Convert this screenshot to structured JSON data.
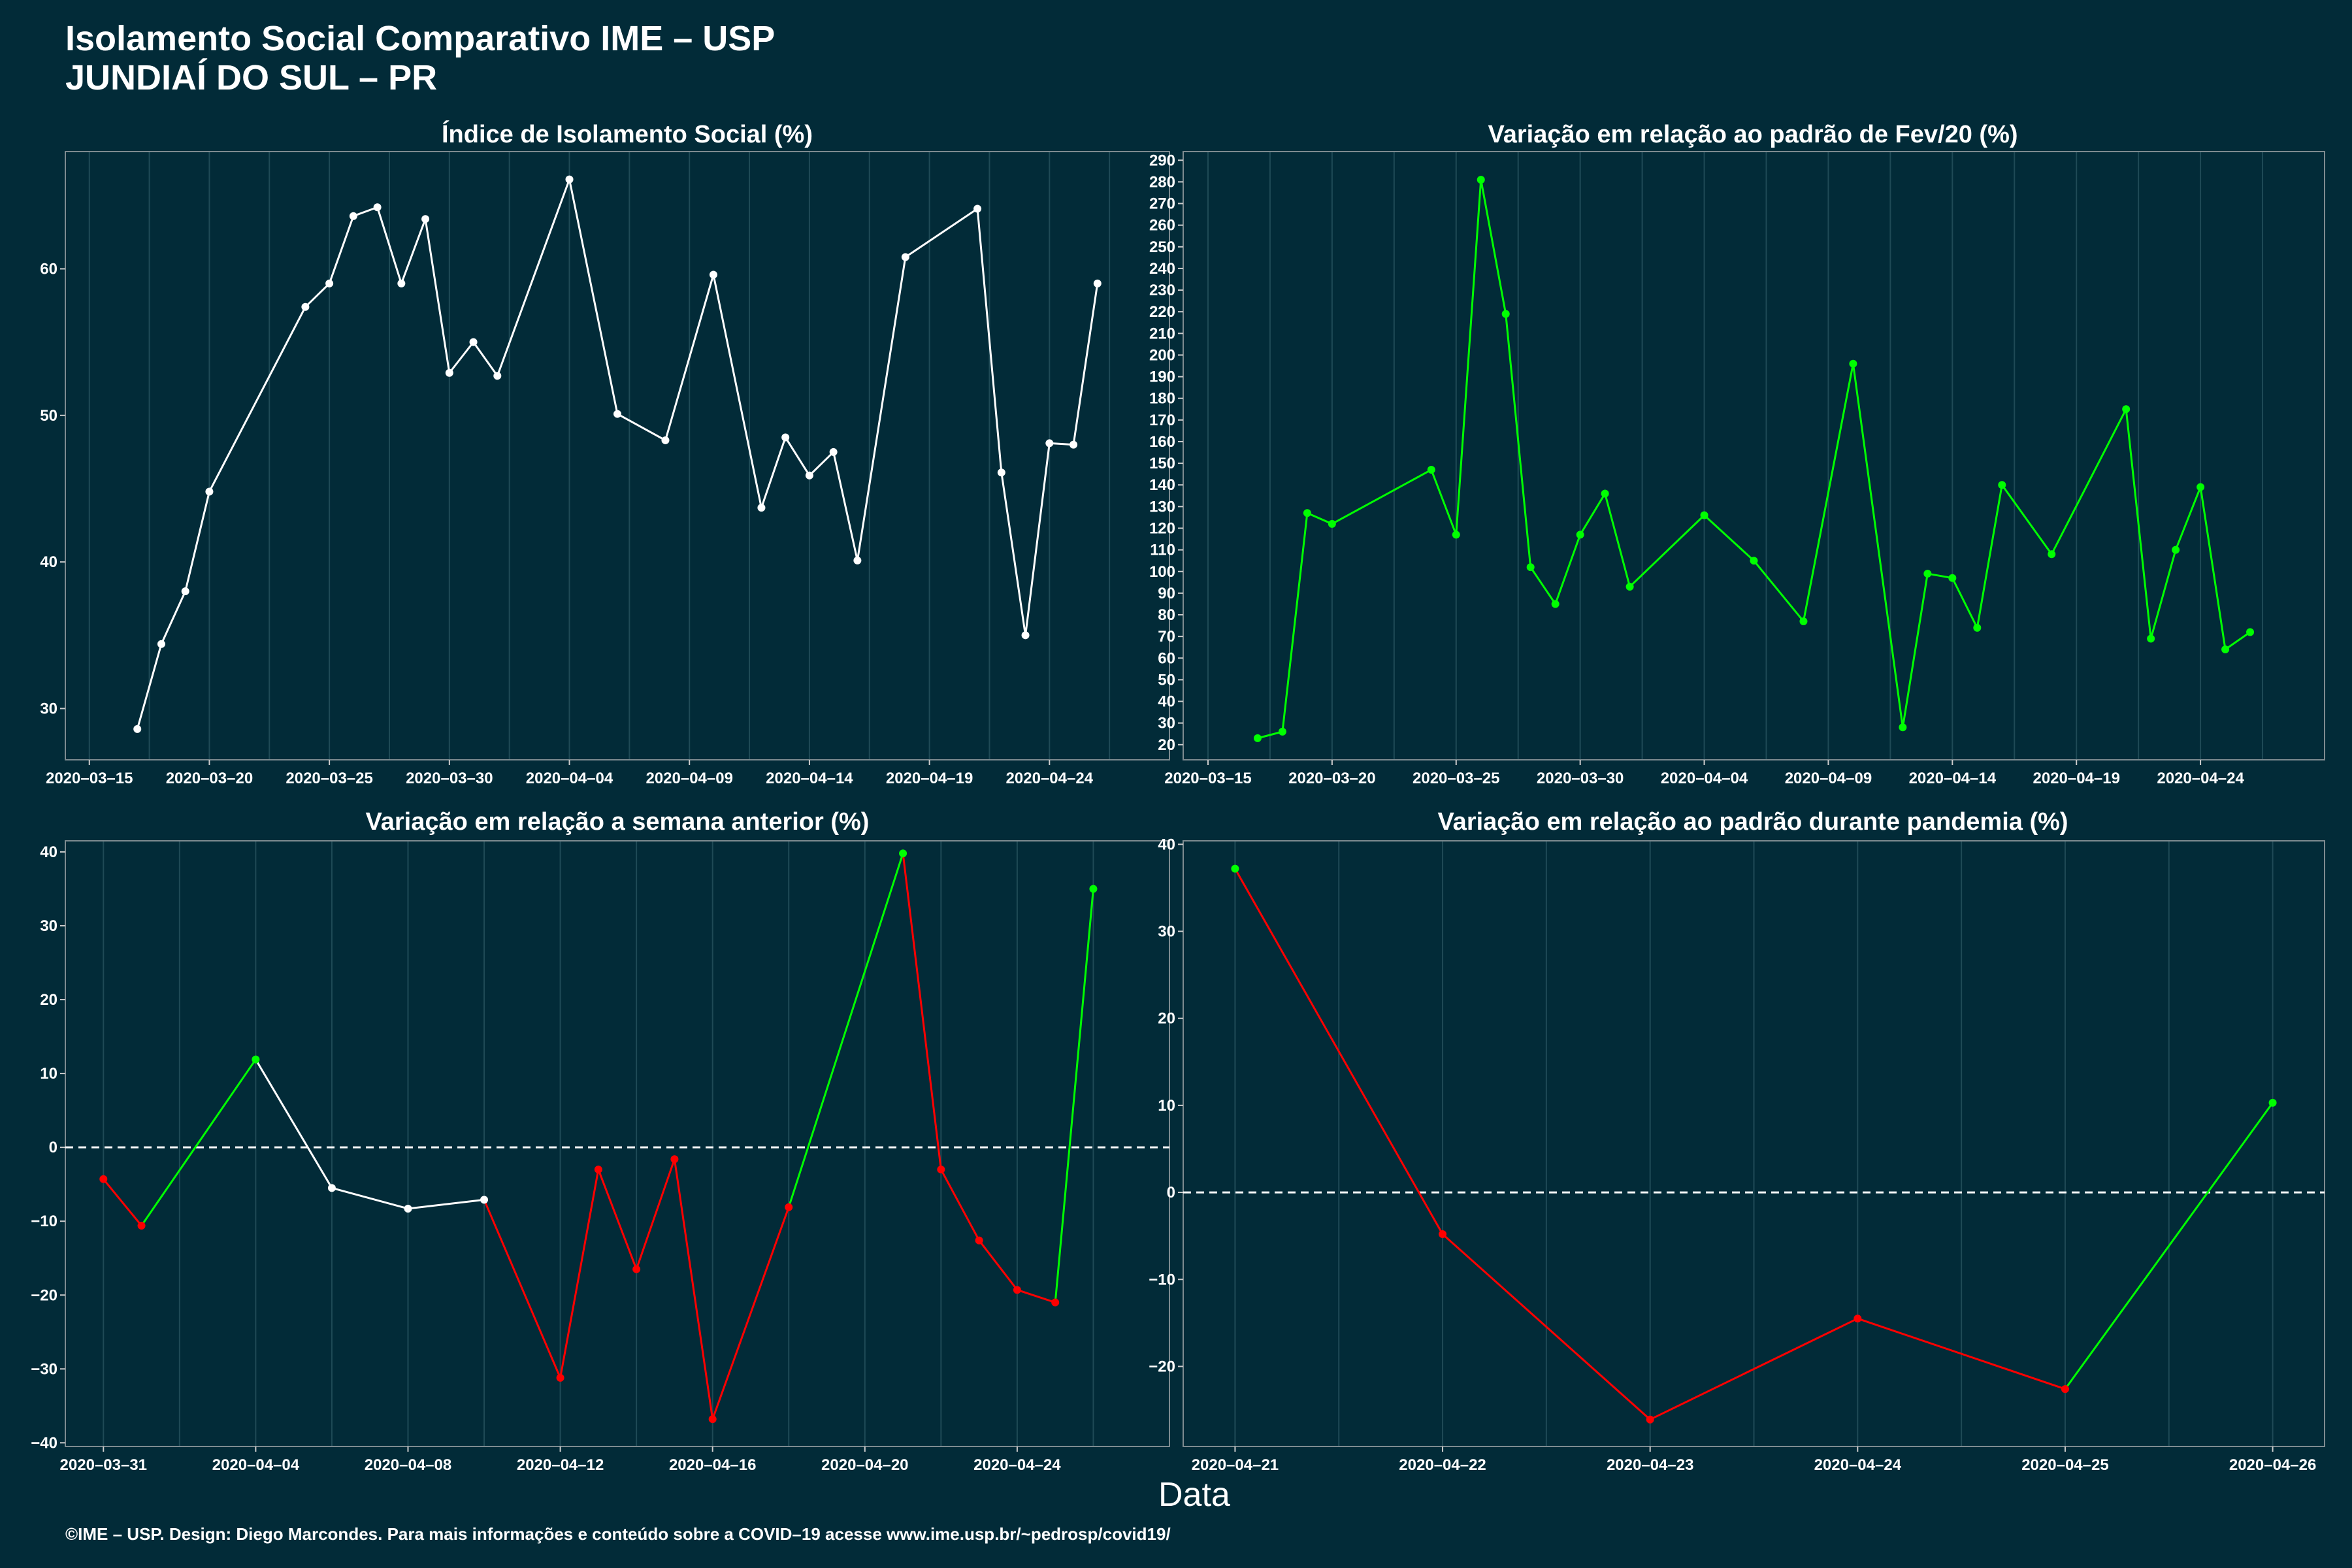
{
  "title": "Isolamento Social Comparativo IME – USP",
  "subtitle": "JUNDIAÍ DO SUL – PR",
  "xlabel": "Data",
  "footer": "©IME – USP. Design: Diego Marcondes. Para mais informações e conteúdo sobre a COVID–19 acesse www.ime.usp.br/~pedrosp/covid19/",
  "colors": {
    "background": "#022b38",
    "white": "#ffffff",
    "green": "#00ff00",
    "red": "#ff0000"
  },
  "chart_data": [
    {
      "type": "line",
      "title": "Índice de Isolamento Social (%)",
      "ylim": [
        26.5,
        68
      ],
      "yticks": [
        30,
        40,
        50,
        60
      ],
      "xlim": [
        "2020-03-14",
        "2020-04-29"
      ],
      "xticks": [
        "2020-03-15",
        "2020-03-20",
        "2020-03-25",
        "2020-03-30",
        "2020-04-04",
        "2020-04-09",
        "2020-04-14",
        "2020-04-19",
        "2020-04-24"
      ],
      "grid": true,
      "points": [
        {
          "x": "2020-03-17",
          "y": 28.6,
          "c": "white"
        },
        {
          "x": "2020-03-18",
          "y": 34.4,
          "c": "white"
        },
        {
          "x": "2020-03-19",
          "y": 38.0,
          "c": "white"
        },
        {
          "x": "2020-03-20",
          "y": 44.8,
          "c": "white"
        },
        {
          "x": "2020-03-24",
          "y": 57.4,
          "c": "white"
        },
        {
          "x": "2020-03-25",
          "y": 59.0,
          "c": "white"
        },
        {
          "x": "2020-03-26",
          "y": 63.6,
          "c": "white"
        },
        {
          "x": "2020-03-27",
          "y": 64.2,
          "c": "white"
        },
        {
          "x": "2020-03-28",
          "y": 59.0,
          "c": "white"
        },
        {
          "x": "2020-03-29",
          "y": 63.4,
          "c": "white"
        },
        {
          "x": "2020-03-30",
          "y": 52.9,
          "c": "white"
        },
        {
          "x": "2020-03-31",
          "y": 55.0,
          "c": "white"
        },
        {
          "x": "2020-04-01",
          "y": 52.7,
          "c": "white"
        },
        {
          "x": "2020-04-04",
          "y": 66.1,
          "c": "white"
        },
        {
          "x": "2020-04-06",
          "y": 50.1,
          "c": "white"
        },
        {
          "x": "2020-04-08",
          "y": 48.3,
          "c": "white"
        },
        {
          "x": "2020-04-10",
          "y": 59.6,
          "c": "white"
        },
        {
          "x": "2020-04-12",
          "y": 43.7,
          "c": "white"
        },
        {
          "x": "2020-04-13",
          "y": 48.5,
          "c": "white"
        },
        {
          "x": "2020-04-14",
          "y": 45.9,
          "c": "white"
        },
        {
          "x": "2020-04-15",
          "y": 47.5,
          "c": "white"
        },
        {
          "x": "2020-04-16",
          "y": 40.1,
          "c": "white"
        },
        {
          "x": "2020-04-18",
          "y": 60.8,
          "c": "white"
        },
        {
          "x": "2020-04-21",
          "y": 64.1,
          "c": "white"
        },
        {
          "x": "2020-04-22",
          "y": 46.1,
          "c": "white"
        },
        {
          "x": "2020-04-23",
          "y": 35.0,
          "c": "white"
        },
        {
          "x": "2020-04-24",
          "y": 48.1,
          "c": "white"
        },
        {
          "x": "2020-04-25",
          "y": 48.0,
          "c": "white"
        },
        {
          "x": "2020-04-26",
          "y": 59.0,
          "c": "white"
        }
      ]
    },
    {
      "type": "line",
      "title": "Variação em relação ao padrão de Fev/20 (%)",
      "ylim": [
        13,
        294
      ],
      "yticks": [
        20,
        30,
        40,
        50,
        60,
        70,
        80,
        90,
        100,
        110,
        120,
        130,
        140,
        150,
        160,
        170,
        180,
        190,
        200,
        210,
        220,
        230,
        240,
        250,
        260,
        270,
        280,
        290
      ],
      "xlim": [
        "2020-03-14",
        "2020-04-29"
      ],
      "xticks": [
        "2020-03-15",
        "2020-03-20",
        "2020-03-25",
        "2020-03-30",
        "2020-04-04",
        "2020-04-09",
        "2020-04-14",
        "2020-04-19",
        "2020-04-24"
      ],
      "grid": true,
      "points": [
        {
          "x": "2020-03-17",
          "y": 23,
          "c": "green"
        },
        {
          "x": "2020-03-18",
          "y": 26,
          "c": "green"
        },
        {
          "x": "2020-03-19",
          "y": 127,
          "c": "green"
        },
        {
          "x": "2020-03-20",
          "y": 122,
          "c": "green"
        },
        {
          "x": "2020-03-24",
          "y": 147,
          "c": "green"
        },
        {
          "x": "2020-03-25",
          "y": 117,
          "c": "green"
        },
        {
          "x": "2020-03-26",
          "y": 281,
          "c": "green"
        },
        {
          "x": "2020-03-27",
          "y": 219,
          "c": "green"
        },
        {
          "x": "2020-03-28",
          "y": 102,
          "c": "green"
        },
        {
          "x": "2020-03-29",
          "y": 85,
          "c": "green"
        },
        {
          "x": "2020-03-30",
          "y": 117,
          "c": "green"
        },
        {
          "x": "2020-03-31",
          "y": 136,
          "c": "green"
        },
        {
          "x": "2020-04-01",
          "y": 93,
          "c": "green"
        },
        {
          "x": "2020-04-04",
          "y": 126,
          "c": "green"
        },
        {
          "x": "2020-04-06",
          "y": 105,
          "c": "green"
        },
        {
          "x": "2020-04-08",
          "y": 77,
          "c": "green"
        },
        {
          "x": "2020-04-10",
          "y": 196,
          "c": "green"
        },
        {
          "x": "2020-04-12",
          "y": 28,
          "c": "green"
        },
        {
          "x": "2020-04-13",
          "y": 99,
          "c": "green"
        },
        {
          "x": "2020-04-14",
          "y": 97,
          "c": "green"
        },
        {
          "x": "2020-04-15",
          "y": 74,
          "c": "green"
        },
        {
          "x": "2020-04-16",
          "y": 140,
          "c": "green"
        },
        {
          "x": "2020-04-18",
          "y": 108,
          "c": "green"
        },
        {
          "x": "2020-04-21",
          "y": 175,
          "c": "green"
        },
        {
          "x": "2020-04-22",
          "y": 69,
          "c": "green"
        },
        {
          "x": "2020-04-23",
          "y": 110,
          "c": "green"
        },
        {
          "x": "2020-04-24",
          "y": 139,
          "c": "green"
        },
        {
          "x": "2020-04-25",
          "y": 64,
          "c": "green"
        },
        {
          "x": "2020-04-26",
          "y": 72,
          "c": "green"
        }
      ]
    },
    {
      "type": "line",
      "title": "Variação em relação a semana anterior (%)",
      "ylim": [
        -40.5,
        41.5
      ],
      "yticks": [
        -40,
        -30,
        -20,
        -10,
        0,
        10,
        20,
        30,
        40
      ],
      "xlim": [
        "2020-03-30",
        "2020-04-28"
      ],
      "xticks": [
        "2020-03-31",
        "2020-04-04",
        "2020-04-08",
        "2020-04-12",
        "2020-04-16",
        "2020-04-20",
        "2020-04-24"
      ],
      "grid": true,
      "hline": 0,
      "points": [
        {
          "x": "2020-03-31",
          "y": -4.3,
          "c": "red"
        },
        {
          "x": "2020-04-01",
          "y": -10.6,
          "c": "red"
        },
        {
          "x": "2020-04-04",
          "y": 11.9,
          "c": "green"
        },
        {
          "x": "2020-04-06",
          "y": -5.5,
          "c": "white"
        },
        {
          "x": "2020-04-08",
          "y": -8.3,
          "c": "white"
        },
        {
          "x": "2020-04-10",
          "y": -7.1,
          "c": "white"
        },
        {
          "x": "2020-04-12",
          "y": -31.2,
          "c": "red"
        },
        {
          "x": "2020-04-13",
          "y": -3.0,
          "c": "red"
        },
        {
          "x": "2020-04-14",
          "y": -16.5,
          "c": "red"
        },
        {
          "x": "2020-04-15",
          "y": -1.6,
          "c": "red"
        },
        {
          "x": "2020-04-16",
          "y": -36.8,
          "c": "red"
        },
        {
          "x": "2020-04-18",
          "y": -8.1,
          "c": "red"
        },
        {
          "x": "2020-04-21",
          "y": 39.8,
          "c": "green"
        },
        {
          "x": "2020-04-22",
          "y": -3.0,
          "c": "red"
        },
        {
          "x": "2020-04-23",
          "y": -12.6,
          "c": "red"
        },
        {
          "x": "2020-04-24",
          "y": -19.3,
          "c": "red"
        },
        {
          "x": "2020-04-25",
          "y": -21.0,
          "c": "red"
        },
        {
          "x": "2020-04-26",
          "y": 35.0,
          "c": "green"
        }
      ]
    },
    {
      "type": "line",
      "title": "Variação em relação ao padrão durante pandemia (%)",
      "ylim": [
        -29.2,
        40.4
      ],
      "yticks": [
        -20,
        -10,
        0,
        10,
        20,
        30,
        40
      ],
      "xlim": [
        "2020-04-20.75",
        "2020-04-26.25"
      ],
      "xticks": [
        "2020-04-21",
        "2020-04-22",
        "2020-04-23",
        "2020-04-24",
        "2020-04-25",
        "2020-04-26"
      ],
      "grid": true,
      "hline": 0,
      "points": [
        {
          "x": "2020-04-21",
          "y": 37.2,
          "c": "green"
        },
        {
          "x": "2020-04-22",
          "y": -4.8,
          "c": "red"
        },
        {
          "x": "2020-04-23",
          "y": -26.1,
          "c": "red"
        },
        {
          "x": "2020-04-24",
          "y": -14.5,
          "c": "red"
        },
        {
          "x": "2020-04-25",
          "y": -22.6,
          "c": "red"
        },
        {
          "x": "2020-04-26",
          "y": 10.3,
          "c": "green"
        }
      ]
    }
  ]
}
